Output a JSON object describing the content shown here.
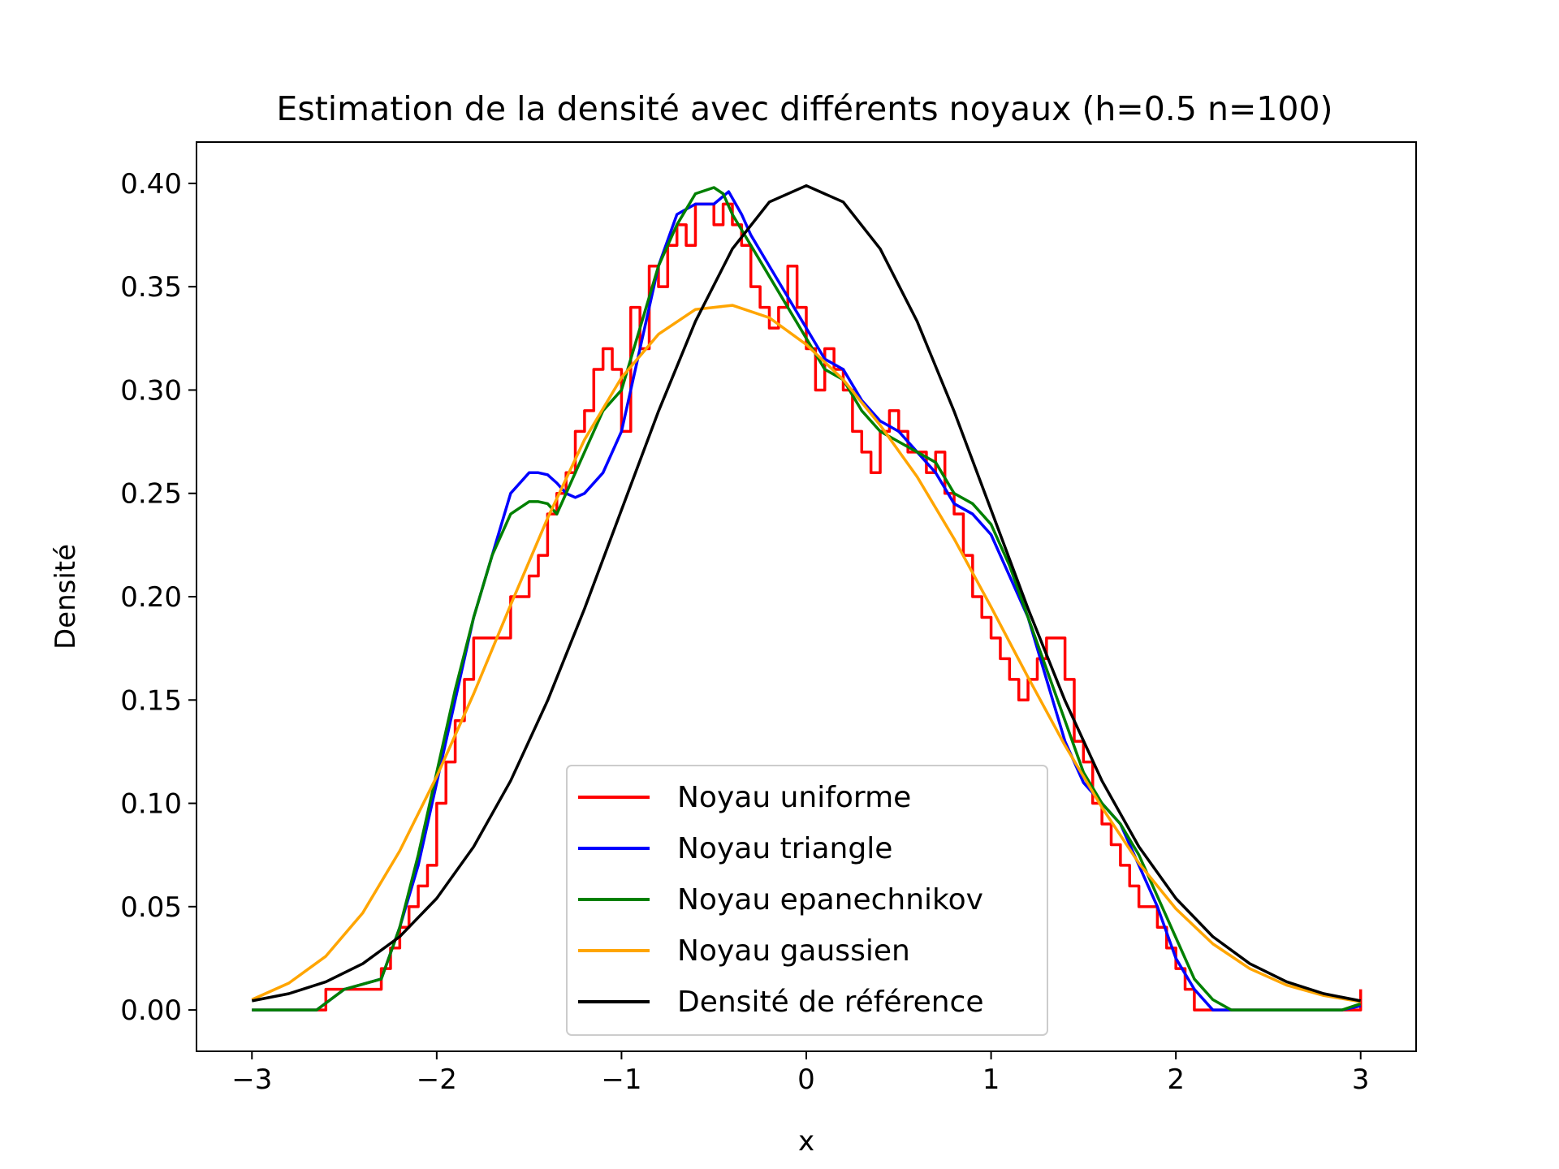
{
  "chart_data": {
    "type": "line",
    "title": "Estimation de la densité avec différents noyaux (h=0.5 n=100)",
    "xlabel": "x",
    "ylabel": "Densité",
    "xlim": [
      -3.3,
      3.3
    ],
    "ylim": [
      -0.02,
      0.42
    ],
    "x_ticks": [
      -3,
      -2,
      -1,
      0,
      1,
      2,
      3
    ],
    "x_tick_labels": [
      "−3",
      "−2",
      "−1",
      "0",
      "1",
      "2",
      "3"
    ],
    "y_ticks": [
      0.0,
      0.05,
      0.1,
      0.15,
      0.2,
      0.25,
      0.3,
      0.35,
      0.4
    ],
    "y_tick_labels": [
      "0.00",
      "0.05",
      "0.10",
      "0.15",
      "0.20",
      "0.25",
      "0.30",
      "0.35",
      "0.40"
    ],
    "grid": false,
    "legend_position": "lower center",
    "series": [
      {
        "name": "Noyau uniforme",
        "color": "#ff0000",
        "step": true,
        "x": [
          -3.0,
          -2.65,
          -2.6,
          -2.35,
          -2.3,
          -2.25,
          -2.2,
          -2.15,
          -2.1,
          -2.05,
          -2.0,
          -1.95,
          -1.9,
          -1.85,
          -1.8,
          -1.75,
          -1.7,
          -1.6,
          -1.55,
          -1.5,
          -1.45,
          -1.4,
          -1.35,
          -1.3,
          -1.25,
          -1.2,
          -1.15,
          -1.1,
          -1.05,
          -1.0,
          -0.95,
          -0.9,
          -0.85,
          -0.8,
          -0.75,
          -0.7,
          -0.65,
          -0.6,
          -0.55,
          -0.5,
          -0.45,
          -0.4,
          -0.35,
          -0.3,
          -0.25,
          -0.2,
          -0.15,
          -0.1,
          -0.05,
          0.0,
          0.05,
          0.1,
          0.15,
          0.2,
          0.25,
          0.3,
          0.35,
          0.4,
          0.45,
          0.5,
          0.55,
          0.6,
          0.65,
          0.7,
          0.75,
          0.8,
          0.85,
          0.9,
          0.95,
          1.0,
          1.05,
          1.1,
          1.15,
          1.2,
          1.25,
          1.3,
          1.35,
          1.4,
          1.45,
          1.5,
          1.55,
          1.6,
          1.65,
          1.7,
          1.75,
          1.8,
          1.85,
          1.9,
          1.95,
          2.0,
          2.05,
          2.1,
          2.15,
          2.2,
          2.25,
          2.3,
          2.9,
          3.0
        ],
        "y": [
          0.0,
          0.0,
          0.01,
          0.01,
          0.02,
          0.03,
          0.04,
          0.05,
          0.06,
          0.07,
          0.1,
          0.12,
          0.14,
          0.16,
          0.18,
          0.18,
          0.18,
          0.2,
          0.2,
          0.21,
          0.22,
          0.24,
          0.25,
          0.26,
          0.28,
          0.29,
          0.31,
          0.32,
          0.31,
          0.28,
          0.34,
          0.32,
          0.36,
          0.35,
          0.37,
          0.38,
          0.37,
          0.39,
          0.39,
          0.38,
          0.39,
          0.38,
          0.37,
          0.35,
          0.34,
          0.33,
          0.34,
          0.36,
          0.34,
          0.32,
          0.3,
          0.32,
          0.31,
          0.3,
          0.28,
          0.27,
          0.26,
          0.28,
          0.29,
          0.28,
          0.27,
          0.27,
          0.26,
          0.27,
          0.25,
          0.24,
          0.22,
          0.2,
          0.19,
          0.18,
          0.17,
          0.16,
          0.15,
          0.16,
          0.17,
          0.18,
          0.18,
          0.16,
          0.13,
          0.12,
          0.1,
          0.09,
          0.08,
          0.07,
          0.06,
          0.05,
          0.05,
          0.04,
          0.03,
          0.02,
          0.01,
          0.0,
          0.0,
          0.0,
          0.0,
          0.0,
          0.0,
          0.01
        ]
      },
      {
        "name": "Noyau triangle",
        "color": "#0000ff",
        "x": [
          -3.0,
          -2.65,
          -2.5,
          -2.3,
          -2.2,
          -2.1,
          -2.0,
          -1.9,
          -1.8,
          -1.7,
          -1.6,
          -1.5,
          -1.45,
          -1.4,
          -1.35,
          -1.3,
          -1.25,
          -1.2,
          -1.1,
          -1.0,
          -0.9,
          -0.8,
          -0.7,
          -0.6,
          -0.5,
          -0.42,
          -0.35,
          -0.3,
          -0.2,
          -0.1,
          0.0,
          0.1,
          0.2,
          0.3,
          0.4,
          0.5,
          0.6,
          0.7,
          0.8,
          0.9,
          1.0,
          1.1,
          1.2,
          1.3,
          1.4,
          1.5,
          1.6,
          1.7,
          1.8,
          1.9,
          2.0,
          2.1,
          2.2,
          2.3,
          2.9,
          3.0
        ],
        "y": [
          0.0,
          0.0,
          0.01,
          0.015,
          0.04,
          0.07,
          0.11,
          0.15,
          0.19,
          0.22,
          0.25,
          0.26,
          0.26,
          0.259,
          0.255,
          0.25,
          0.248,
          0.25,
          0.26,
          0.28,
          0.32,
          0.36,
          0.385,
          0.39,
          0.39,
          0.396,
          0.385,
          0.375,
          0.36,
          0.345,
          0.33,
          0.315,
          0.31,
          0.295,
          0.285,
          0.28,
          0.27,
          0.26,
          0.245,
          0.24,
          0.23,
          0.21,
          0.19,
          0.16,
          0.13,
          0.11,
          0.1,
          0.09,
          0.07,
          0.05,
          0.025,
          0.01,
          0.0,
          0.0,
          0.0,
          0.002
        ]
      },
      {
        "name": "Noyau epanechnikov",
        "color": "#008000",
        "x": [
          -3.0,
          -2.65,
          -2.5,
          -2.3,
          -2.2,
          -2.1,
          -2.0,
          -1.9,
          -1.8,
          -1.7,
          -1.6,
          -1.5,
          -1.45,
          -1.4,
          -1.35,
          -1.3,
          -1.2,
          -1.1,
          -1.0,
          -0.9,
          -0.8,
          -0.7,
          -0.6,
          -0.5,
          -0.45,
          -0.4,
          -0.3,
          -0.2,
          -0.1,
          0.0,
          0.1,
          0.2,
          0.3,
          0.4,
          0.5,
          0.6,
          0.7,
          0.8,
          0.9,
          1.0,
          1.1,
          1.2,
          1.3,
          1.4,
          1.5,
          1.6,
          1.7,
          1.8,
          1.9,
          2.0,
          2.1,
          2.2,
          2.3,
          2.9,
          3.0
        ],
        "y": [
          0.0,
          0.0,
          0.01,
          0.015,
          0.04,
          0.075,
          0.115,
          0.155,
          0.19,
          0.22,
          0.24,
          0.246,
          0.246,
          0.245,
          0.24,
          0.25,
          0.27,
          0.29,
          0.3,
          0.33,
          0.36,
          0.38,
          0.395,
          0.398,
          0.395,
          0.385,
          0.37,
          0.355,
          0.34,
          0.325,
          0.31,
          0.305,
          0.29,
          0.28,
          0.275,
          0.27,
          0.265,
          0.25,
          0.245,
          0.235,
          0.215,
          0.19,
          0.165,
          0.14,
          0.115,
          0.1,
          0.09,
          0.075,
          0.055,
          0.035,
          0.015,
          0.005,
          0.0,
          0.0,
          0.003
        ]
      },
      {
        "name": "Noyau gaussien",
        "color": "#ffa500",
        "x": [
          -3.0,
          -2.8,
          -2.6,
          -2.4,
          -2.2,
          -2.0,
          -1.8,
          -1.6,
          -1.4,
          -1.2,
          -1.0,
          -0.8,
          -0.6,
          -0.4,
          -0.2,
          0.0,
          0.2,
          0.4,
          0.6,
          0.8,
          1.0,
          1.2,
          1.4,
          1.6,
          1.8,
          2.0,
          2.2,
          2.4,
          2.6,
          2.8,
          3.0
        ],
        "y": [
          0.005,
          0.013,
          0.026,
          0.047,
          0.077,
          0.113,
          0.153,
          0.196,
          0.238,
          0.276,
          0.306,
          0.327,
          0.339,
          0.341,
          0.335,
          0.322,
          0.305,
          0.283,
          0.258,
          0.228,
          0.195,
          0.161,
          0.128,
          0.098,
          0.071,
          0.049,
          0.032,
          0.02,
          0.012,
          0.007,
          0.004
        ]
      },
      {
        "name": "Densité de référence",
        "color": "#000000",
        "x": [
          -3.0,
          -2.8,
          -2.6,
          -2.4,
          -2.2,
          -2.0,
          -1.8,
          -1.6,
          -1.4,
          -1.2,
          -1.0,
          -0.8,
          -0.6,
          -0.4,
          -0.2,
          0.0,
          0.2,
          0.4,
          0.6,
          0.8,
          1.0,
          1.2,
          1.4,
          1.6,
          1.8,
          2.0,
          2.2,
          2.4,
          2.6,
          2.8,
          3.0
        ],
        "y": [
          0.0044,
          0.0079,
          0.0136,
          0.0224,
          0.0355,
          0.054,
          0.079,
          0.1109,
          0.1497,
          0.1942,
          0.242,
          0.2897,
          0.3332,
          0.3683,
          0.391,
          0.3989,
          0.391,
          0.3683,
          0.3332,
          0.2897,
          0.242,
          0.1942,
          0.1497,
          0.1109,
          0.079,
          0.054,
          0.0355,
          0.0224,
          0.0136,
          0.0079,
          0.0044
        ]
      }
    ]
  }
}
